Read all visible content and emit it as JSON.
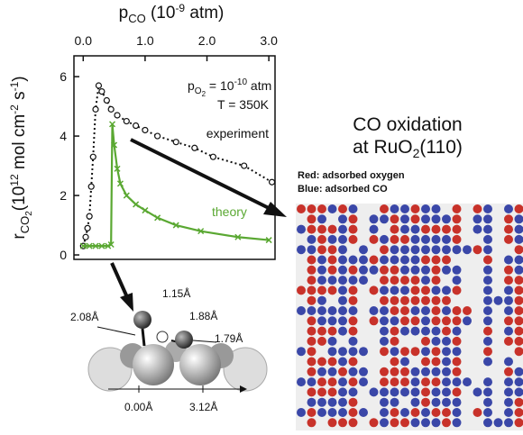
{
  "chart_data": {
    "type": "line",
    "xlabel": [
      "p",
      "CO",
      " (10",
      "-9",
      " atm)"
    ],
    "ylabel": [
      "r",
      "CO",
      "2",
      "(10",
      "12",
      " mol cm",
      "-2",
      " s",
      "-1",
      ")"
    ],
    "xlim": [
      -0.15,
      3.1
    ],
    "ylim": [
      -0.15,
      6.7
    ],
    "xticks": [
      {
        "value": 0,
        "label": "0.0"
      },
      {
        "value": 1,
        "label": "1.0"
      },
      {
        "value": 2,
        "label": "2.0"
      },
      {
        "value": 3,
        "label": "3.0"
      }
    ],
    "yticks": [
      0,
      2,
      4,
      6
    ],
    "series": [
      {
        "name": "experiment",
        "color": "#111111",
        "x": [
          0.0,
          0.04,
          0.07,
          0.1,
          0.13,
          0.16,
          0.2,
          0.25,
          0.3,
          0.38,
          0.45,
          0.55,
          0.7,
          0.85,
          1.0,
          1.2,
          1.5,
          1.8,
          2.1,
          2.6,
          3.05
        ],
        "values": [
          0.3,
          0.6,
          0.9,
          1.3,
          2.3,
          3.3,
          4.9,
          5.7,
          5.5,
          5.2,
          4.9,
          4.7,
          4.5,
          4.35,
          4.2,
          4.0,
          3.8,
          3.6,
          3.3,
          3.0,
          2.45
        ]
      },
      {
        "name": "theory",
        "color": "#5aa832",
        "x": [
          0.0,
          0.1,
          0.2,
          0.3,
          0.4,
          0.45,
          0.47,
          0.5,
          0.55,
          0.6,
          0.7,
          0.85,
          1.0,
          1.2,
          1.5,
          1.9,
          2.5,
          3.0
        ],
        "values": [
          0.3,
          0.3,
          0.3,
          0.3,
          0.3,
          0.35,
          4.4,
          3.7,
          2.9,
          2.4,
          2.0,
          1.7,
          1.5,
          1.25,
          1.0,
          0.8,
          0.6,
          0.5
        ]
      }
    ],
    "annotations": {
      "pressure": [
        "p",
        "O",
        "2",
        " = 10",
        "-10",
        " atm"
      ],
      "temperature": "T = 350K"
    }
  },
  "panel": {
    "title": [
      "CO oxidation",
      "at RuO",
      "2",
      "(110)"
    ],
    "legend_red": "Red: adsorbed oxygen",
    "legend_blue": "Blue: adsorbed CO"
  },
  "molecule": {
    "labels": [
      "1.15Å",
      "2.08Å",
      "1.88Å",
      "1.79Å",
      "0.00Å",
      "3.12Å"
    ]
  }
}
